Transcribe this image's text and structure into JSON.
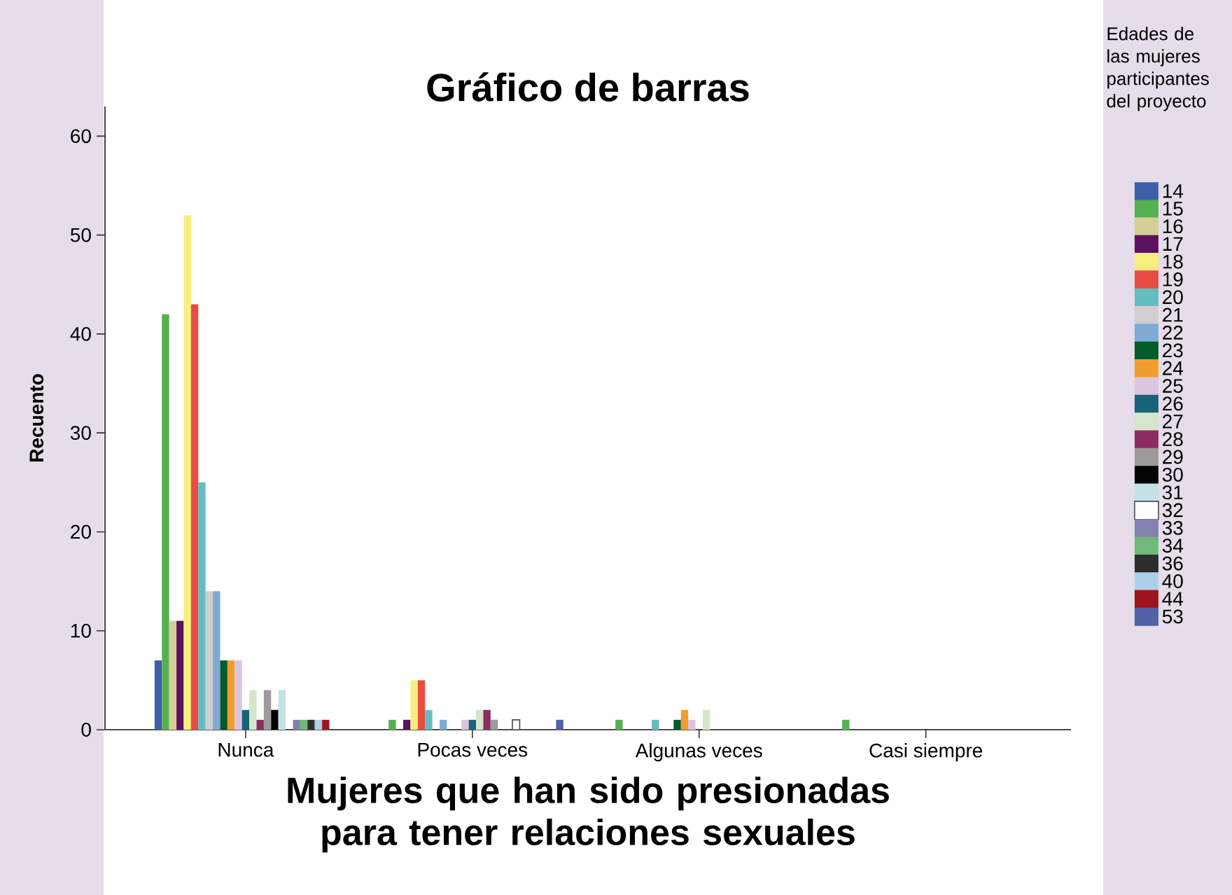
{
  "chart_data": {
    "type": "bar",
    "title": "Gráfico de barras",
    "xlabel": "Mujeres que han sido presionadas para tener relaciones sexuales",
    "ylabel": "Recuento",
    "legend_title": "Edades de las mujeres participantes del proyecto",
    "legend": "right",
    "grid": false,
    "categories": [
      "Nunca",
      "Pocas veces",
      "Algunas veces",
      "Casi siempre"
    ],
    "ylim": [
      0,
      63
    ],
    "yticks": [
      0,
      10,
      20,
      30,
      40,
      50,
      60
    ],
    "series": [
      {
        "name": "14",
        "color": "#3e5ea8",
        "values": [
          7,
          0,
          0,
          0
        ]
      },
      {
        "name": "15",
        "color": "#55b050",
        "values": [
          42,
          1,
          1,
          1
        ]
      },
      {
        "name": "16",
        "color": "#d4d097",
        "values": [
          11,
          0,
          0,
          0
        ]
      },
      {
        "name": "17",
        "color": "#5b1260",
        "values": [
          11,
          1,
          0,
          0
        ]
      },
      {
        "name": "18",
        "color": "#f8ee7e",
        "values": [
          52,
          5,
          0,
          0
        ]
      },
      {
        "name": "19",
        "color": "#e74c45",
        "values": [
          43,
          5,
          0,
          0
        ]
      },
      {
        "name": "20",
        "color": "#65bdc4",
        "values": [
          25,
          2,
          1,
          0
        ]
      },
      {
        "name": "21",
        "color": "#cfcfcf",
        "values": [
          14,
          0,
          0,
          0
        ]
      },
      {
        "name": "22",
        "color": "#80a9d6",
        "values": [
          14,
          1,
          0,
          0
        ]
      },
      {
        "name": "23",
        "color": "#035a2a",
        "values": [
          7,
          0,
          1,
          0
        ]
      },
      {
        "name": "24",
        "color": "#f39c2e",
        "values": [
          7,
          0,
          2,
          0
        ]
      },
      {
        "name": "25",
        "color": "#dac5e0",
        "values": [
          7,
          1,
          1,
          0
        ]
      },
      {
        "name": "26",
        "color": "#17637a",
        "values": [
          2,
          1,
          0,
          0
        ]
      },
      {
        "name": "27",
        "color": "#d5e6cb",
        "values": [
          4,
          2,
          2,
          0
        ]
      },
      {
        "name": "28",
        "color": "#8b2d64",
        "values": [
          1,
          2,
          0,
          0
        ]
      },
      {
        "name": "29",
        "color": "#9c9a9b",
        "values": [
          4,
          1,
          0,
          0
        ]
      },
      {
        "name": "30",
        "color": "#030303",
        "values": [
          2,
          0,
          0,
          0
        ]
      },
      {
        "name": "31",
        "color": "#c3e2e6",
        "values": [
          4,
          0,
          0,
          0
        ]
      },
      {
        "name": "32",
        "color": "#ffffff",
        "values": [
          0,
          1,
          0,
          0
        ]
      },
      {
        "name": "33",
        "color": "#8182ae",
        "values": [
          1,
          0,
          0,
          0
        ]
      },
      {
        "name": "34",
        "color": "#6fb97a",
        "values": [
          1,
          0,
          0,
          0
        ]
      },
      {
        "name": "36",
        "color": "#2c2e2b",
        "values": [
          1,
          0,
          0,
          0
        ]
      },
      {
        "name": "40",
        "color": "#acd0ea",
        "values": [
          1,
          0,
          0,
          0
        ]
      },
      {
        "name": "44",
        "color": "#9e141b",
        "values": [
          1,
          0,
          0,
          0
        ]
      },
      {
        "name": "53",
        "color": "#5061a6",
        "values": [
          0,
          1,
          0,
          0
        ]
      }
    ]
  }
}
